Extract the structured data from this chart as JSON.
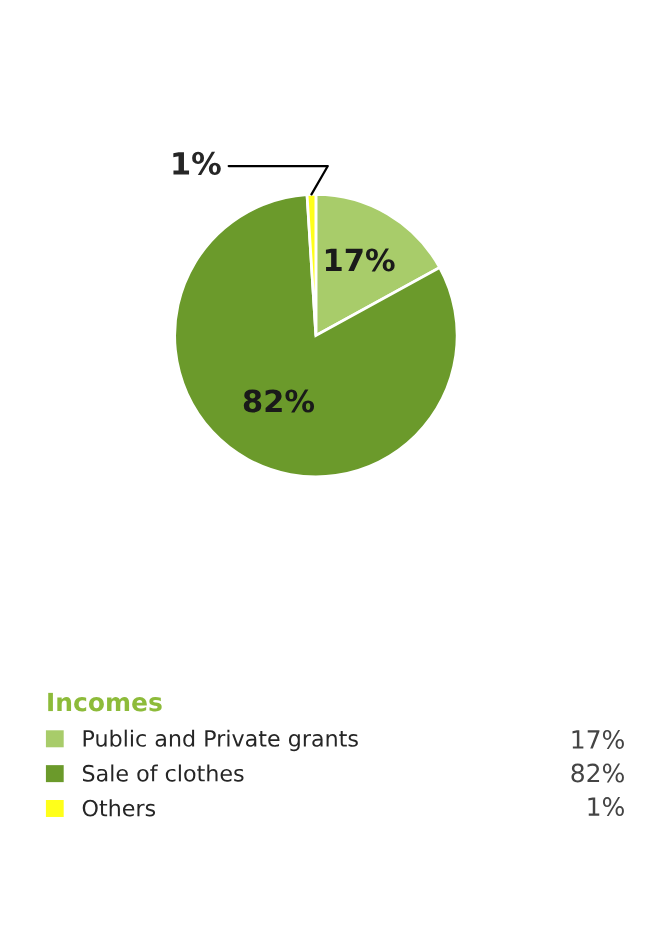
{
  "chart_data": {
    "type": "pie",
    "legend_title": "Incomes",
    "categories": [
      "Public and Private grants",
      "Sale of clothes",
      "Others"
    ],
    "values": [
      17,
      82,
      1
    ],
    "colors": [
      "#a8cc6a",
      "#6b9a2b",
      "#ffff1a"
    ],
    "value_labels": [
      "17%",
      "82%",
      "1%"
    ],
    "legend": "bottom"
  }
}
